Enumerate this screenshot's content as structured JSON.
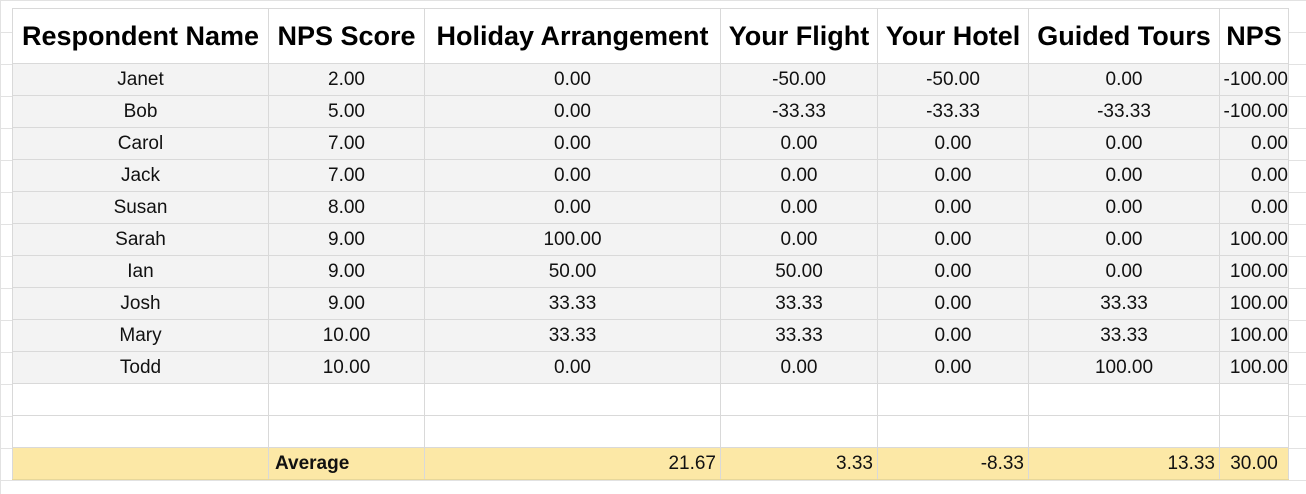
{
  "columns": [
    "Respondent Name",
    "NPS Score",
    "Holiday Arrangement",
    "Your Flight",
    "Your Hotel",
    "Guided Tours",
    "NPS"
  ],
  "rows": [
    [
      "Janet",
      "2.00",
      "0.00",
      "-50.00",
      "-50.00",
      "0.00",
      "-100.00"
    ],
    [
      "Bob",
      "5.00",
      "0.00",
      "-33.33",
      "-33.33",
      "-33.33",
      "-100.00"
    ],
    [
      "Carol",
      "7.00",
      "0.00",
      "0.00",
      "0.00",
      "0.00",
      "0.00"
    ],
    [
      "Jack",
      "7.00",
      "0.00",
      "0.00",
      "0.00",
      "0.00",
      "0.00"
    ],
    [
      "Susan",
      "8.00",
      "0.00",
      "0.00",
      "0.00",
      "0.00",
      "0.00"
    ],
    [
      "Sarah",
      "9.00",
      "100.00",
      "0.00",
      "0.00",
      "0.00",
      "100.00"
    ],
    [
      "Ian",
      "9.00",
      "50.00",
      "50.00",
      "0.00",
      "0.00",
      "100.00"
    ],
    [
      "Josh",
      "9.00",
      "33.33",
      "33.33",
      "0.00",
      "33.33",
      "100.00"
    ],
    [
      "Mary",
      "10.00",
      "33.33",
      "33.33",
      "0.00",
      "33.33",
      "100.00"
    ],
    [
      "Todd",
      "10.00",
      "0.00",
      "0.00",
      "0.00",
      "100.00",
      "100.00"
    ]
  ],
  "average": {
    "label": "Average",
    "holiday_arrangement": "21.67",
    "your_flight": "3.33",
    "your_hotel": "-8.33",
    "guided_tours": "13.33",
    "nps": "30.00"
  },
  "colors": {
    "data_fill": "#f3f3f3",
    "average_fill": "#fce8a6",
    "gridline": "#d9d9d9"
  }
}
